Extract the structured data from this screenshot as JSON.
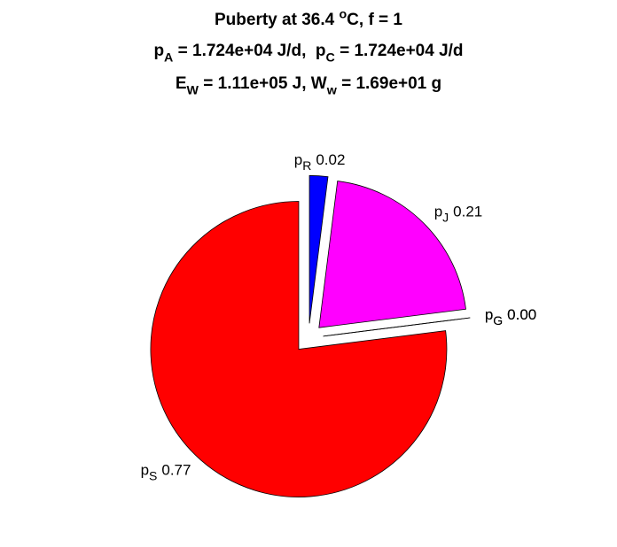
{
  "chart_data": {
    "type": "pie",
    "title": [
      [
        "Puberty at 36.4 ",
        {
          "sup": "o"
        },
        "C, f = 1"
      ],
      [
        "p",
        {
          "sub": "A"
        },
        " = 1.724e+04 J/d,  p",
        {
          "sub": "C"
        },
        " = 1.724e+04 J/d"
      ],
      [
        "E",
        {
          "sub": "W"
        },
        " = 1.11e+05 J, W",
        {
          "sub": "w"
        },
        " = 1.69e+01 g"
      ]
    ],
    "categories": [
      {
        "text": "p",
        "sub": "S"
      },
      {
        "text": "p",
        "sub": "G"
      },
      {
        "text": "p",
        "sub": "G"
      },
      {
        "text": "p",
        "sub": "J"
      },
      {
        "text": "p",
        "sub": "R"
      }
    ],
    "values": [
      0.77,
      0,
      0,
      0.21,
      0.02
    ],
    "value_labels": [
      "0.77",
      "0.00",
      "0.00",
      "0.21",
      "0.02"
    ],
    "colors": [
      "#ff0000",
      "#808080",
      "#808080",
      "#ff00ff",
      "#0000ff"
    ],
    "explode": true
  }
}
